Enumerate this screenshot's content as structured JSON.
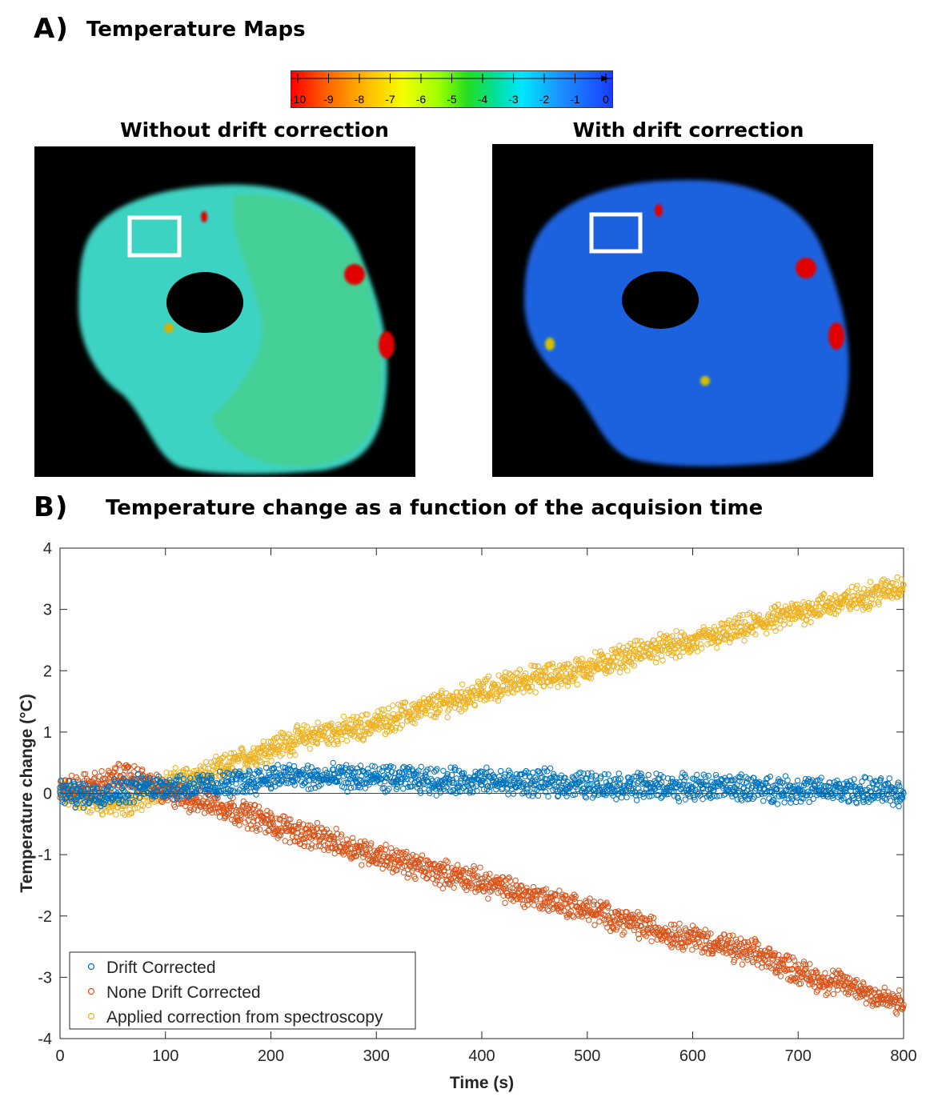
{
  "panel_a": {
    "label": "A)",
    "title": "Temperature Maps",
    "colorbar": {
      "ticks": [
        "-10",
        "-9",
        "-8",
        "-7",
        "-6",
        "-5",
        "-4",
        "-3",
        "-2",
        "-1",
        "0"
      ],
      "range": [
        -10,
        0
      ],
      "colors": [
        "#ff0000",
        "#ff8000",
        "#ffff00",
        "#00dd00",
        "#00e6ff",
        "#0000ff"
      ]
    },
    "map_left": {
      "title": "Without drift correction",
      "tissue_color": "#3fd6c0",
      "hotspot_color": "#e00000"
    },
    "map_right": {
      "title": "With drift correction",
      "tissue_color": "#1f5de0",
      "hotspot_color": "#e00000"
    }
  },
  "panel_b": {
    "label": "B)",
    "title": "Temperature change as a function of the acquision time"
  },
  "chart_data": {
    "type": "scatter",
    "title": "Temperature change as a function of the acquision time",
    "xlabel": "Time (s)",
    "ylabel": "Temperature change (°C)",
    "xlim": [
      0,
      800
    ],
    "ylim": [
      -4,
      4
    ],
    "xticks": [
      0,
      100,
      200,
      300,
      400,
      500,
      600,
      700,
      800
    ],
    "yticks": [
      -4,
      -3,
      -2,
      -1,
      0,
      1,
      2,
      3,
      4
    ],
    "xtick_labels": [
      "0",
      "100",
      "200",
      "300",
      "400",
      "500",
      "600",
      "700",
      "800"
    ],
    "ytick_labels": [
      "-4",
      "-3",
      "-2",
      "-1",
      "0",
      "1",
      "2",
      "3",
      "4"
    ],
    "legend_position": "bottom-left",
    "zero_line": true,
    "series": [
      {
        "name": "Drift Corrected",
        "color": "#0072bd",
        "x": [
          0,
          20,
          40,
          60,
          80,
          100,
          120,
          140,
          160,
          180,
          200,
          220,
          240,
          260,
          280,
          300,
          320,
          340,
          360,
          380,
          400,
          420,
          440,
          460,
          480,
          500,
          520,
          540,
          560,
          580,
          600,
          620,
          640,
          660,
          680,
          700,
          720,
          740,
          760,
          780,
          800
        ],
        "y": [
          0.02,
          -0.02,
          0.0,
          0.05,
          0.1,
          0.12,
          0.1,
          0.12,
          0.15,
          0.2,
          0.27,
          0.28,
          0.25,
          0.25,
          0.26,
          0.25,
          0.23,
          0.22,
          0.2,
          0.2,
          0.2,
          0.18,
          0.17,
          0.17,
          0.15,
          0.14,
          0.13,
          0.12,
          0.11,
          0.1,
          0.1,
          0.1,
          0.09,
          0.08,
          0.07,
          0.06,
          0.05,
          0.04,
          0.04,
          0.03,
          0.0
        ]
      },
      {
        "name": "None Drift Corrected",
        "color": "#d95319",
        "x": [
          0,
          20,
          40,
          60,
          80,
          100,
          120,
          140,
          160,
          180,
          200,
          220,
          240,
          260,
          280,
          300,
          320,
          340,
          360,
          380,
          400,
          420,
          440,
          460,
          480,
          500,
          520,
          540,
          560,
          580,
          600,
          620,
          640,
          660,
          680,
          700,
          720,
          740,
          760,
          780,
          800
        ],
        "y": [
          0.05,
          0.1,
          0.15,
          0.3,
          0.2,
          0.0,
          -0.08,
          -0.15,
          -0.25,
          -0.35,
          -0.5,
          -0.6,
          -0.7,
          -0.8,
          -0.9,
          -1.0,
          -1.1,
          -1.2,
          -1.3,
          -1.35,
          -1.45,
          -1.55,
          -1.65,
          -1.72,
          -1.8,
          -1.9,
          -2.0,
          -2.1,
          -2.2,
          -2.3,
          -2.35,
          -2.45,
          -2.55,
          -2.62,
          -2.75,
          -2.9,
          -3.05,
          -3.1,
          -3.2,
          -3.35,
          -3.45
        ]
      },
      {
        "name": "Applied correction from spectroscopy",
        "color": "#edb120",
        "x": [
          0,
          20,
          40,
          60,
          80,
          100,
          120,
          140,
          160,
          180,
          200,
          220,
          240,
          260,
          280,
          300,
          320,
          340,
          360,
          380,
          400,
          420,
          440,
          460,
          480,
          500,
          520,
          540,
          560,
          580,
          600,
          620,
          640,
          660,
          680,
          700,
          720,
          740,
          760,
          780,
          800
        ],
        "y": [
          0.0,
          -0.1,
          -0.15,
          -0.2,
          -0.05,
          0.15,
          0.25,
          0.3,
          0.45,
          0.6,
          0.75,
          0.85,
          0.95,
          1.0,
          1.05,
          1.15,
          1.25,
          1.35,
          1.45,
          1.55,
          1.65,
          1.75,
          1.85,
          1.9,
          1.95,
          2.05,
          2.15,
          2.25,
          2.35,
          2.4,
          2.45,
          2.55,
          2.65,
          2.75,
          2.85,
          2.95,
          3.05,
          3.1,
          3.2,
          3.3,
          3.4
        ]
      }
    ]
  }
}
